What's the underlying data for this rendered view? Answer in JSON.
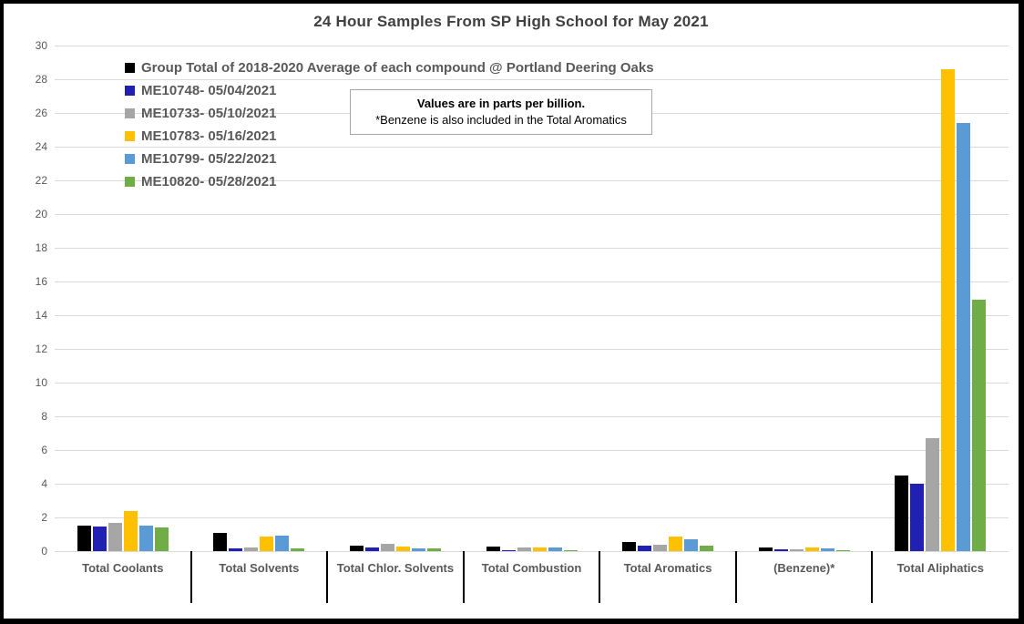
{
  "title": "24 Hour Samples From SP High School for May 2021",
  "note": {
    "line1": "Values are in parts per billion.",
    "line2": "*Benzene is also included in the Total Aromatics"
  },
  "chart_data": {
    "type": "bar",
    "title": "24 Hour Samples From SP High School for May 2021",
    "units": "parts per billion",
    "categories": [
      "Total Coolants",
      "Total Solvents",
      "Total Chlor. Solvents",
      "Total Combustion",
      "Total Aromatics",
      "(Benzene)*",
      "Total Aliphatics"
    ],
    "series": [
      {
        "name": "Group Total of 2018-2020 Average of each compound @ Portland Deering Oaks",
        "color": "#000000",
        "values": [
          1.5,
          1.1,
          0.3,
          0.25,
          0.55,
          0.2,
          4.5
        ]
      },
      {
        "name": "ME10748- 05/04/2021",
        "color": "#2021b3",
        "values": [
          1.45,
          0.15,
          0.2,
          0.02,
          0.3,
          0.1,
          4.0
        ]
      },
      {
        "name": "ME10733- 05/10/2021",
        "color": "#a6a6a6",
        "values": [
          1.65,
          0.2,
          0.45,
          0.2,
          0.4,
          0.1,
          6.7
        ]
      },
      {
        "name": "ME10783- 05/16/2021",
        "color": "#ffc000",
        "values": [
          2.4,
          0.85,
          0.25,
          0.2,
          0.85,
          0.2,
          28.6
        ]
      },
      {
        "name": "ME10799- 05/22/2021",
        "color": "#5b9bd5",
        "values": [
          1.5,
          0.9,
          0.15,
          0.2,
          0.7,
          0.15,
          25.4
        ]
      },
      {
        "name": "ME10820- 05/28/2021",
        "color": "#70ad47",
        "values": [
          1.4,
          0.15,
          0.15,
          0.05,
          0.3,
          0.07,
          14.9
        ]
      }
    ],
    "ylim": [
      0,
      30
    ],
    "y_ticks": [
      0,
      2,
      4,
      6,
      8,
      10,
      12,
      14,
      16,
      18,
      20,
      22,
      24,
      26,
      28,
      30
    ],
    "grid": true,
    "legend_position": "top-left",
    "gridline_color": "#d9d9d9"
  }
}
